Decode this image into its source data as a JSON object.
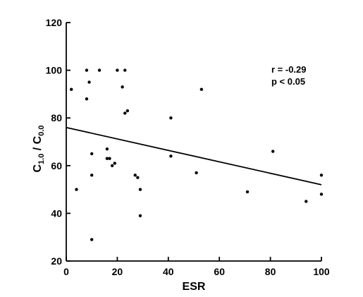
{
  "chart_data": {
    "type": "scatter",
    "title": "",
    "xlabel": "ESR",
    "ylabel": {
      "main": "C",
      "sub1": "1.0",
      "slash": " / C",
      "sub2": "0.0"
    },
    "xlim": [
      0,
      100
    ],
    "ylim": [
      20,
      120
    ],
    "xticks": [
      0,
      20,
      40,
      60,
      80,
      100
    ],
    "yticks": [
      20,
      40,
      60,
      80,
      100,
      120
    ],
    "grid": false,
    "legend": "none",
    "annotations": [
      "r = -0.29",
      "p < 0.05"
    ],
    "points": [
      {
        "x": 2,
        "y": 92
      },
      {
        "x": 4,
        "y": 50
      },
      {
        "x": 8,
        "y": 100
      },
      {
        "x": 8,
        "y": 88
      },
      {
        "x": 9,
        "y": 95
      },
      {
        "x": 10,
        "y": 56
      },
      {
        "x": 10,
        "y": 65
      },
      {
        "x": 10,
        "y": 29
      },
      {
        "x": 13,
        "y": 100
      },
      {
        "x": 16,
        "y": 67
      },
      {
        "x": 16,
        "y": 63
      },
      {
        "x": 17,
        "y": 63
      },
      {
        "x": 18,
        "y": 60
      },
      {
        "x": 19,
        "y": 61
      },
      {
        "x": 20,
        "y": 100
      },
      {
        "x": 22,
        "y": 93
      },
      {
        "x": 23,
        "y": 100
      },
      {
        "x": 23,
        "y": 82
      },
      {
        "x": 24,
        "y": 83
      },
      {
        "x": 27,
        "y": 56
      },
      {
        "x": 28,
        "y": 55
      },
      {
        "x": 29,
        "y": 50
      },
      {
        "x": 29,
        "y": 39
      },
      {
        "x": 41,
        "y": 80
      },
      {
        "x": 41,
        "y": 64
      },
      {
        "x": 51,
        "y": 57
      },
      {
        "x": 53,
        "y": 92
      },
      {
        "x": 71,
        "y": 49
      },
      {
        "x": 81,
        "y": 66
      },
      {
        "x": 94,
        "y": 45
      },
      {
        "x": 100,
        "y": 56
      },
      {
        "x": 100,
        "y": 48
      }
    ],
    "regression_line": {
      "x": [
        0,
        100
      ],
      "y": [
        76,
        52
      ]
    }
  }
}
